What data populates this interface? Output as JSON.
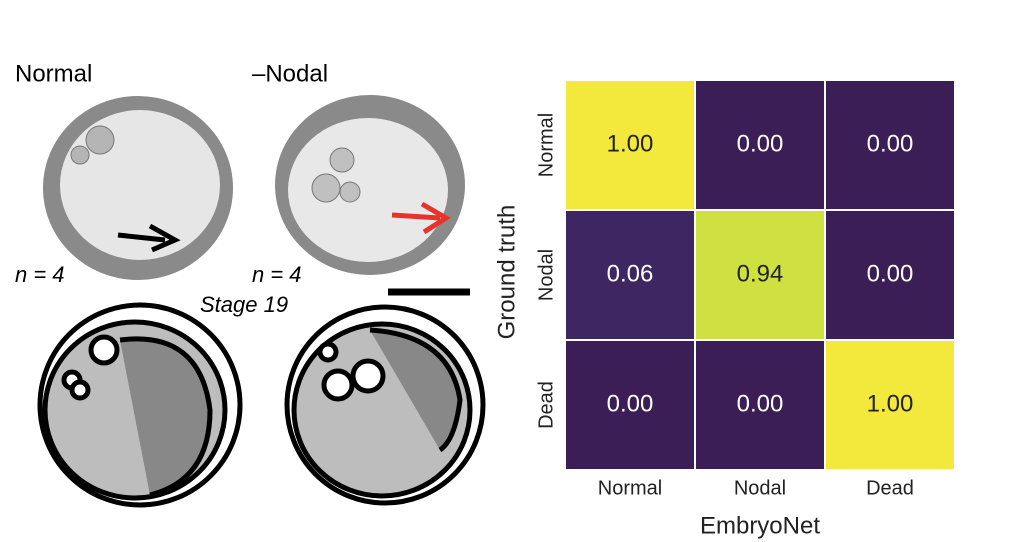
{
  "panel": {
    "left_label": "Normal",
    "right_label": "–Nodal",
    "left_n": "n = 4",
    "right_n": "n = 4",
    "stage": "Stage 19"
  },
  "chart_data": {
    "type": "heatmap",
    "x_label": "EmbryoNet",
    "y_label": "Ground truth",
    "x_categories": [
      "Normal",
      "Nodal",
      "Dead"
    ],
    "y_categories": [
      "Normal",
      "Nodal",
      "Dead"
    ],
    "values": [
      [
        1.0,
        0.0,
        0.0
      ],
      [
        0.06,
        0.94,
        0.0
      ],
      [
        0.0,
        0.0,
        1.0
      ]
    ],
    "value_labels": [
      [
        "1.00",
        "0.00",
        "0.00"
      ],
      [
        "0.06",
        "0.94",
        "0.00"
      ],
      [
        "0.00",
        "0.00",
        "1.00"
      ]
    ],
    "colorscale": [
      "#3b1e55",
      "#433a7e",
      "#2c6f8e",
      "#24a584",
      "#7dcf4e",
      "#f2e93c"
    ],
    "zlim": [
      0,
      1
    ]
  }
}
